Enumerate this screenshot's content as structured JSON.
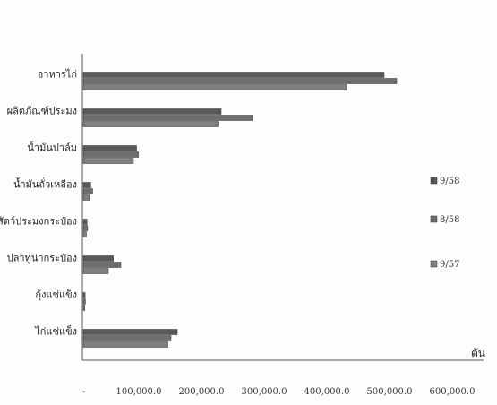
{
  "chart_data": {
    "type": "bar",
    "orientation": "horizontal",
    "categories": [
      "อาหารไก่",
      "ผลิตภัณฑ์ประมง",
      "น้ำมันปาล์ม",
      "น้ำมันถั่วเหลือง",
      "สัตว์ประมงกระป๋อง",
      "ปลาทูน่ากระป๋อง",
      "กุ้งแช่แข็ง",
      "ไก่แช่แข็ง"
    ],
    "series": [
      {
        "name": "9/58",
        "color": "#5a5a5a",
        "values": [
          480000,
          220000,
          85000,
          12000,
          6000,
          48000,
          3000,
          150000
        ]
      },
      {
        "name": "8/58",
        "color": "#6e6e6e",
        "values": [
          500000,
          270000,
          88000,
          15000,
          7000,
          60000,
          3500,
          140000
        ]
      },
      {
        "name": "9/57",
        "color": "#808080",
        "values": [
          420000,
          215000,
          80000,
          10000,
          5000,
          40000,
          2500,
          135000
        ]
      }
    ],
    "x_ticks": [
      "100,000.0",
      "200,000.0",
      "300,000.0",
      "400,000.0",
      "500,000.0",
      "600,000.0"
    ],
    "x_unit": "ตัน",
    "xlim": [
      0,
      600000
    ],
    "legend_position": "right",
    "grid": false
  }
}
